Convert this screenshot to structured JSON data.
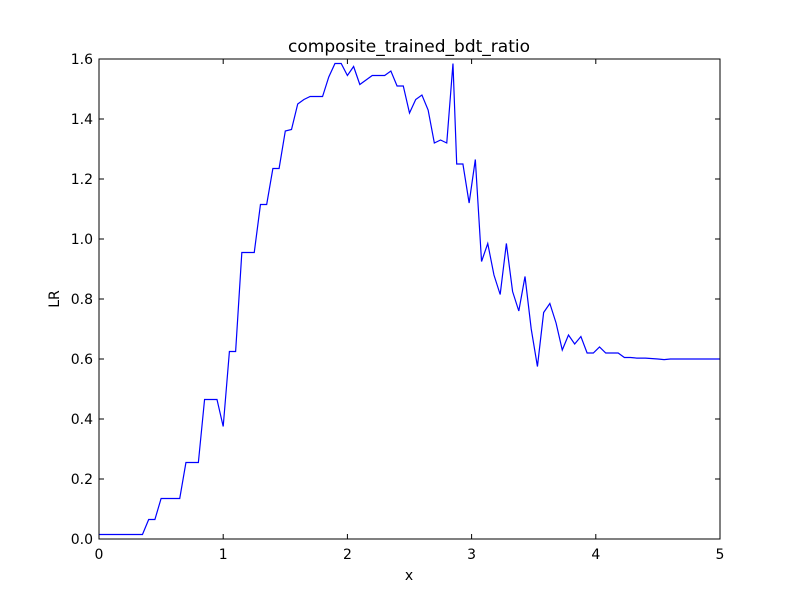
{
  "chart_data": {
    "type": "line",
    "title": "composite_trained_bdt_ratio",
    "xlabel": "x",
    "ylabel": "LR",
    "xlim": [
      0,
      5
    ],
    "ylim": [
      0,
      1.6
    ],
    "grid": false,
    "x_ticks": [
      0,
      1,
      2,
      3,
      4,
      5
    ],
    "x_tick_labels": [
      "0",
      "1",
      "2",
      "3",
      "4",
      "5"
    ],
    "y_ticks": [
      0.0,
      0.2,
      0.4,
      0.6,
      0.8,
      1.0,
      1.2,
      1.4,
      1.6
    ],
    "y_tick_labels": [
      "0.0",
      "0.2",
      "0.4",
      "0.6",
      "0.8",
      "1.0",
      "1.2",
      "1.4",
      "1.6"
    ],
    "series": [
      {
        "color": "#0000ff",
        "x": [
          0.0,
          0.35,
          0.4,
          0.45,
          0.5,
          0.55,
          0.65,
          0.7,
          0.8,
          0.85,
          0.95,
          1.0,
          1.05,
          1.1,
          1.15,
          1.2,
          1.25,
          1.3,
          1.35,
          1.4,
          1.45,
          1.5,
          1.55,
          1.6,
          1.65,
          1.7,
          1.75,
          1.8,
          1.85,
          1.9,
          1.95,
          2.0,
          2.05,
          2.1,
          2.15,
          2.2,
          2.25,
          2.3,
          2.35,
          2.4,
          2.45,
          2.5,
          2.55,
          2.6,
          2.65,
          2.7,
          2.75,
          2.8,
          2.85,
          2.88,
          2.93,
          2.98,
          3.03,
          3.08,
          3.13,
          3.18,
          3.23,
          3.28,
          3.33,
          3.38,
          3.43,
          3.48,
          3.53,
          3.58,
          3.63,
          3.68,
          3.73,
          3.78,
          3.83,
          3.88,
          3.93,
          3.98,
          4.03,
          4.08,
          4.13,
          4.18,
          4.23,
          4.28,
          4.33,
          4.4,
          4.5,
          4.55,
          4.6,
          4.65,
          4.75,
          4.85,
          5.0
        ],
        "y": [
          0.015,
          0.015,
          0.065,
          0.065,
          0.135,
          0.135,
          0.135,
          0.255,
          0.255,
          0.465,
          0.465,
          0.375,
          0.625,
          0.625,
          0.955,
          0.955,
          0.955,
          1.115,
          1.115,
          1.235,
          1.235,
          1.36,
          1.365,
          1.45,
          1.465,
          1.475,
          1.475,
          1.475,
          1.54,
          1.585,
          1.585,
          1.545,
          1.575,
          1.515,
          1.53,
          1.545,
          1.545,
          1.545,
          1.56,
          1.51,
          1.51,
          1.42,
          1.465,
          1.48,
          1.43,
          1.32,
          1.33,
          1.32,
          1.585,
          1.25,
          1.25,
          1.12,
          1.265,
          0.925,
          0.985,
          0.88,
          0.815,
          0.985,
          0.825,
          0.76,
          0.875,
          0.7,
          0.575,
          0.755,
          0.785,
          0.72,
          0.63,
          0.68,
          0.65,
          0.675,
          0.62,
          0.62,
          0.64,
          0.62,
          0.62,
          0.62,
          0.605,
          0.605,
          0.603,
          0.603,
          0.6,
          0.598,
          0.6,
          0.6,
          0.6,
          0.6,
          0.6
        ]
      }
    ]
  }
}
